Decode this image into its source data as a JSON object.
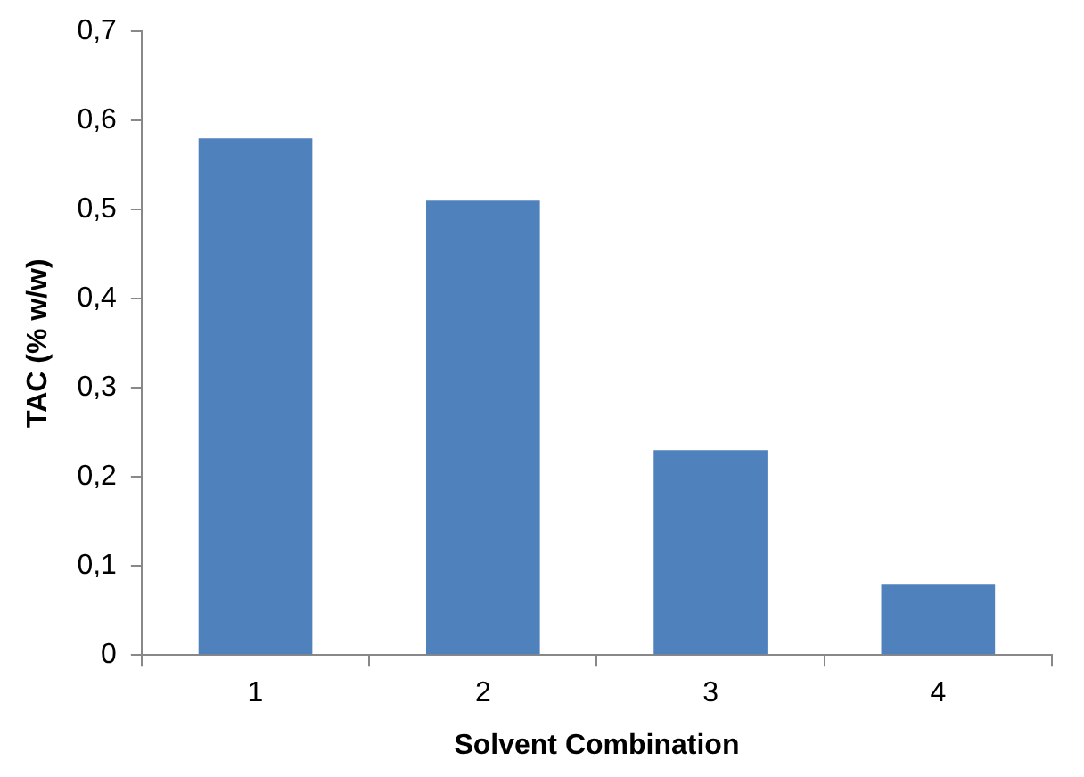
{
  "chart_data": {
    "type": "bar",
    "xlabel": "Solvent Combination",
    "ylabel": "TAC (% w/w)",
    "categories": [
      "1",
      "2",
      "3",
      "4"
    ],
    "values": [
      0.58,
      0.51,
      0.23,
      0.08
    ],
    "color": "#4f81bd",
    "ylim": [
      0,
      0.7
    ],
    "yticks": [
      0,
      {
        "value": 0.1,
        "label": "0,1"
      },
      {
        "value": 0.2,
        "label": "0,2"
      },
      {
        "value": 0.3,
        "label": "0,3"
      },
      {
        "value": 0.4,
        "label": "0,4"
      },
      {
        "value": 0.5,
        "label": "0,5"
      },
      {
        "value": 0.6,
        "label": "0,6"
      },
      {
        "value": 0.7,
        "label": "0,7"
      }
    ],
    "grid": false,
    "legend": false
  }
}
